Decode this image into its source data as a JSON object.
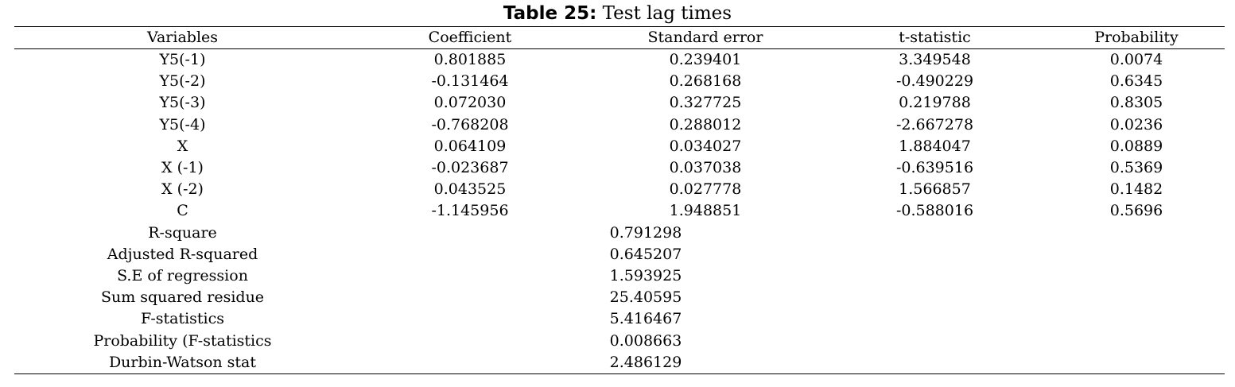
{
  "caption": {
    "label": "Table 25:",
    "title": "Test lag times"
  },
  "headers": [
    "Variables",
    "Coefficient",
    "Standard error",
    "t-statistic",
    "Probability"
  ],
  "rows": [
    [
      "Y5(-1)",
      "0.801885",
      "0.239401",
      "3.349548",
      "0.0074"
    ],
    [
      "Y5(-2)",
      "-0.131464",
      "0.268168",
      "-0.490229",
      "0.6345"
    ],
    [
      "Y5(-3)",
      "0.072030",
      "0.327725",
      "0.219788",
      "0.8305"
    ],
    [
      "Y5(-4)",
      "-0.768208",
      "0.288012",
      "-2.667278",
      "0.0236"
    ],
    [
      "X",
      "0.064109",
      "0.034027",
      "1.884047",
      "0.0889"
    ],
    [
      "X (-1)",
      "-0.023687",
      "0.037038",
      "-0.639516",
      "0.5369"
    ],
    [
      "X (-2)",
      "0.043525",
      "0.027778",
      "1.566857",
      "0.1482"
    ],
    [
      "C",
      "-1.145956",
      "1.948851",
      "-0.588016",
      "0.5696"
    ]
  ],
  "stats": [
    [
      "R-square",
      "0.791298"
    ],
    [
      "Adjusted R-squared",
      "0.645207"
    ],
    [
      "S.E of regression",
      "1.593925"
    ],
    [
      "Sum squared residue",
      "25.40595"
    ],
    [
      "F-statistics",
      "5.416467"
    ],
    [
      "Probability (F-statistics",
      "0.008663"
    ],
    [
      "Durbin-Watson stat",
      "2.486129"
    ]
  ]
}
